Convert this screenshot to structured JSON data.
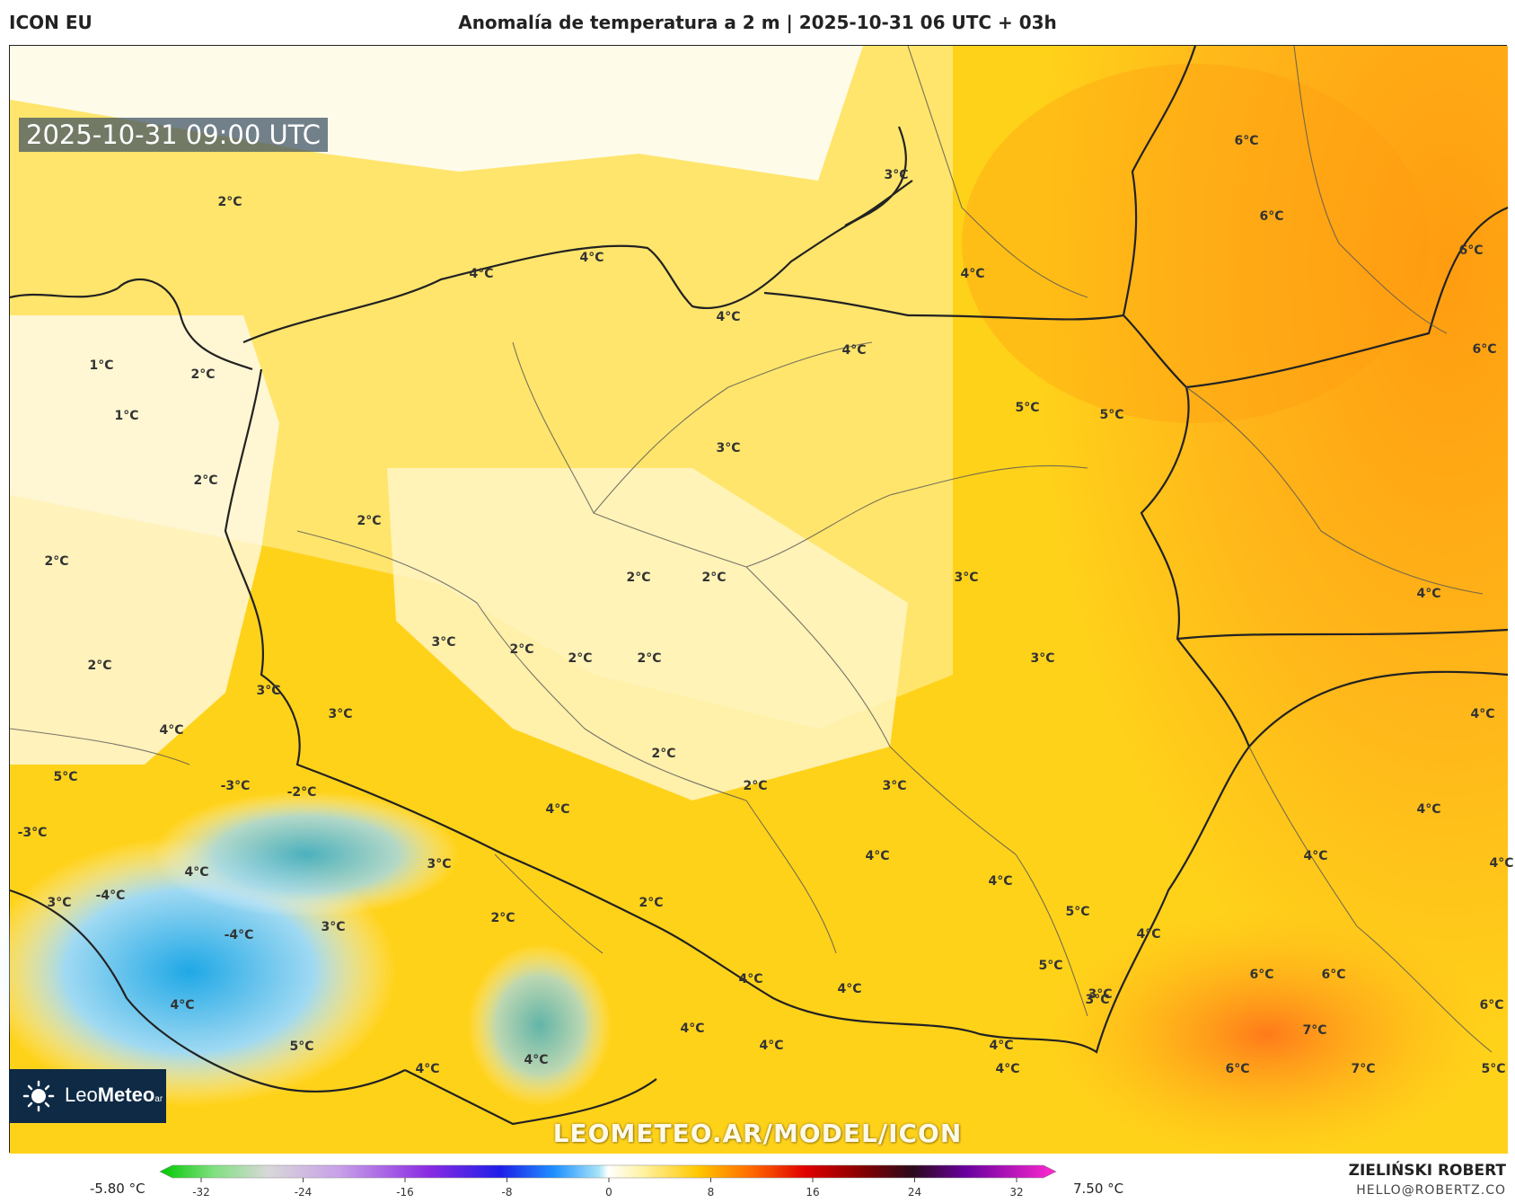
{
  "header": {
    "model_name": "ICON EU",
    "title": "Anomalía de temperatura a 2 m | 2025-10-31 06 UTC + 03h"
  },
  "valid_time": "2025-10-31 09:00 UTC",
  "watermark": "LEOMETEO.AR/MODEL/ICON",
  "logo": {
    "brand_light": "Leo",
    "brand_bold": "Meteo",
    "suffix": "ar",
    "icon": "sun-icon"
  },
  "legend": {
    "min_label": "-5.80 °C",
    "max_label": "7.50 °C",
    "ticks": [
      "-32",
      "-24",
      "-16",
      "-8",
      "0",
      "8",
      "16",
      "24",
      "32"
    ]
  },
  "credit": {
    "name": "ZIELIŃSKI ROBERT",
    "email": "HELLO@ROBERTZ.CO"
  },
  "colors": {
    "cold_deep": "#1fa8e6",
    "cold_light": "#9fd9f2",
    "neutral": "#ffffff",
    "warm_pale": "#fff4b0",
    "warm_light": "#ffe45c",
    "warm_mid": "#ffd21a",
    "warm_orange": "#ffb81a",
    "warm_deep": "#ff9c10",
    "warm_hot": "#ff8a1a",
    "borders": "#222222"
  },
  "temperature_labels": [
    {
      "text": "2°C"
    },
    {
      "text": "3°C"
    },
    {
      "text": "4°C"
    },
    {
      "text": "4°C"
    },
    {
      "text": "4°C"
    },
    {
      "text": "6°C"
    },
    {
      "text": "6°C"
    },
    {
      "text": "6°C"
    },
    {
      "text": "6°C"
    },
    {
      "text": "1°C"
    },
    {
      "text": "2°C"
    },
    {
      "text": "1°C"
    },
    {
      "text": "4°C"
    },
    {
      "text": "4°C"
    },
    {
      "text": "5°C"
    },
    {
      "text": "5°C"
    },
    {
      "text": "2°C"
    },
    {
      "text": "3°C"
    },
    {
      "text": "2°C"
    },
    {
      "text": "2°C"
    },
    {
      "text": "2°C"
    },
    {
      "text": "2°C"
    },
    {
      "text": "3°C"
    },
    {
      "text": "4°C"
    },
    {
      "text": "3°C"
    },
    {
      "text": "2°C"
    },
    {
      "text": "2°C"
    },
    {
      "text": "2°C"
    },
    {
      "text": "3°C"
    },
    {
      "text": "2°C"
    },
    {
      "text": "3°C"
    },
    {
      "text": "3°C"
    },
    {
      "text": "4°C"
    },
    {
      "text": "4°C"
    },
    {
      "text": "5°C"
    },
    {
      "text": "-3°C"
    },
    {
      "text": "-2°C"
    },
    {
      "text": "2°C"
    },
    {
      "text": "2°C"
    },
    {
      "text": "3°C"
    },
    {
      "text": "4°C"
    },
    {
      "text": "-3°C"
    },
    {
      "text": "4°C"
    },
    {
      "text": "3°C"
    },
    {
      "text": "-4°C"
    },
    {
      "text": "-4°C"
    },
    {
      "text": "3°C"
    },
    {
      "text": "2°C"
    },
    {
      "text": "3°C"
    },
    {
      "text": "2°C"
    },
    {
      "text": "4°C"
    },
    {
      "text": "4°C"
    },
    {
      "text": "4°C"
    },
    {
      "text": "5°C"
    },
    {
      "text": "4°C"
    },
    {
      "text": "4°C"
    },
    {
      "text": "5°C"
    },
    {
      "text": "3°C"
    },
    {
      "text": "4°C"
    },
    {
      "text": "4°C"
    },
    {
      "text": "4°C"
    },
    {
      "text": "6°C"
    },
    {
      "text": "6°C"
    },
    {
      "text": "6°C"
    },
    {
      "text": "7°C"
    },
    {
      "text": "4°C"
    },
    {
      "text": "5°C"
    },
    {
      "text": "4°C"
    },
    {
      "text": "4°C"
    },
    {
      "text": "4°C"
    },
    {
      "text": "4°C"
    },
    {
      "text": "6°C"
    },
    {
      "text": "7°C"
    },
    {
      "text": "5°C"
    },
    {
      "text": "4°C"
    },
    {
      "text": "4°C"
    },
    {
      "text": "3°C"
    }
  ]
}
